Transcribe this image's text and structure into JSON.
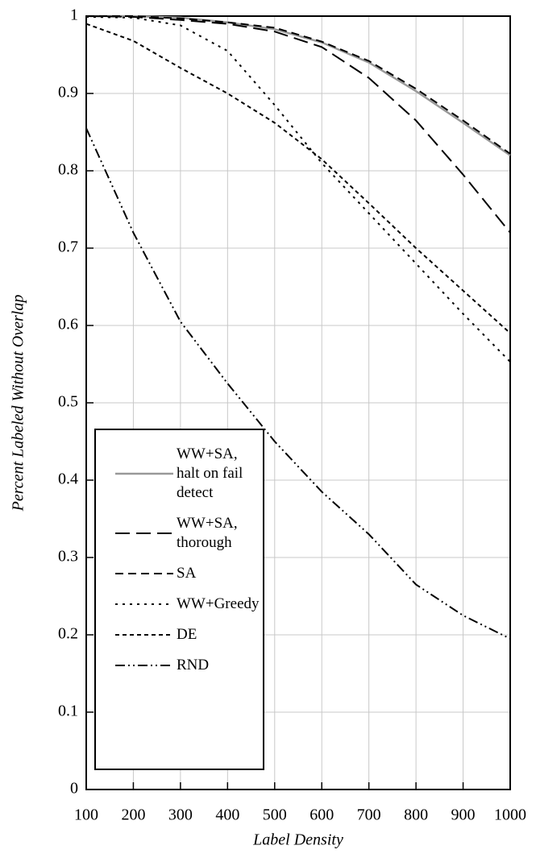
{
  "chart_data": {
    "type": "line",
    "x_label": "Label Density",
    "y_label": "Percent Labeled Without Overlap",
    "x": [
      100,
      200,
      300,
      400,
      500,
      600,
      700,
      800,
      900,
      1000
    ],
    "series": [
      {
        "name": "WW+SA, halt on fail detect",
        "color": "#999999",
        "dash": "none",
        "values": [
          1.0,
          1.0,
          0.998,
          0.992,
          0.983,
          0.966,
          0.94,
          0.903,
          0.862,
          0.82
        ]
      },
      {
        "name": "WW+SA, thorough",
        "color": "#000000",
        "dash": "18,8",
        "values": [
          1.0,
          0.999,
          0.995,
          0.99,
          0.98,
          0.96,
          0.92,
          0.865,
          0.795,
          0.72
        ]
      },
      {
        "name": "SA",
        "color": "#000000",
        "dash": "10,6",
        "values": [
          1.0,
          1.0,
          0.997,
          0.992,
          0.985,
          0.967,
          0.942,
          0.906,
          0.865,
          0.822
        ]
      },
      {
        "name": "WW+Greedy",
        "color": "#000000",
        "dash": "3,6",
        "values": [
          0.999,
          0.998,
          0.988,
          0.955,
          0.885,
          0.81,
          0.745,
          0.68,
          0.615,
          0.553
        ]
      },
      {
        "name": "DE",
        "color": "#000000",
        "dash": "5,4",
        "values": [
          0.99,
          0.968,
          0.933,
          0.9,
          0.862,
          0.815,
          0.758,
          0.7,
          0.645,
          0.59
        ]
      },
      {
        "name": "RND",
        "color": "#000000",
        "dash": "12,4,2,4,2,4",
        "values": [
          0.855,
          0.72,
          0.605,
          0.525,
          0.45,
          0.385,
          0.33,
          0.265,
          0.225,
          0.195
        ]
      }
    ],
    "xlim": [
      100,
      1000
    ],
    "xticks": [
      100,
      200,
      300,
      400,
      500,
      600,
      700,
      800,
      900,
      1000
    ],
    "ylim": [
      0,
      1
    ],
    "yticks": [
      0,
      0.1,
      0.2,
      0.3,
      0.4,
      0.5,
      0.6,
      0.7,
      0.8,
      0.9,
      1
    ],
    "grid": true,
    "legend": "lower-left"
  }
}
